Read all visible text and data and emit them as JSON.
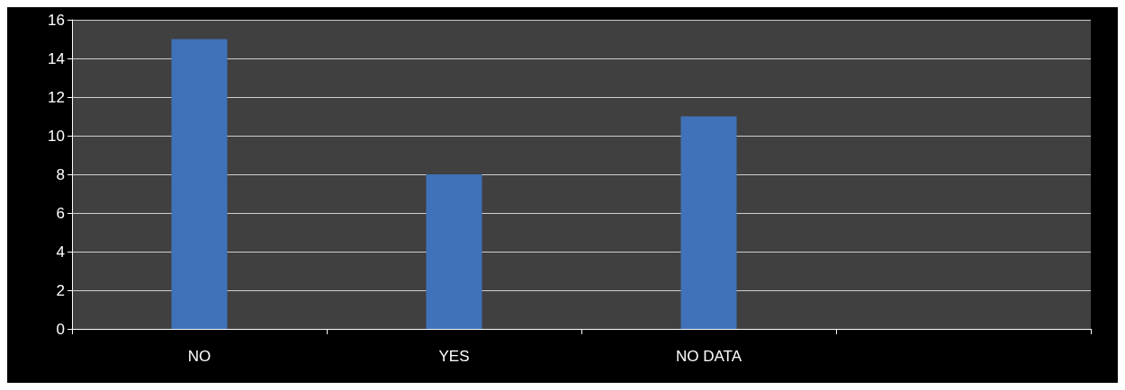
{
  "chart_data": {
    "type": "bar",
    "categories": [
      "NO",
      "YES",
      "NO DATA",
      null
    ],
    "values": [
      15,
      8,
      11,
      null
    ],
    "color": "#3f72b8",
    "ylim": [
      0,
      16
    ],
    "yticks": [
      0,
      2,
      4,
      6,
      8,
      10,
      12,
      14,
      16
    ],
    "grid": "y"
  }
}
